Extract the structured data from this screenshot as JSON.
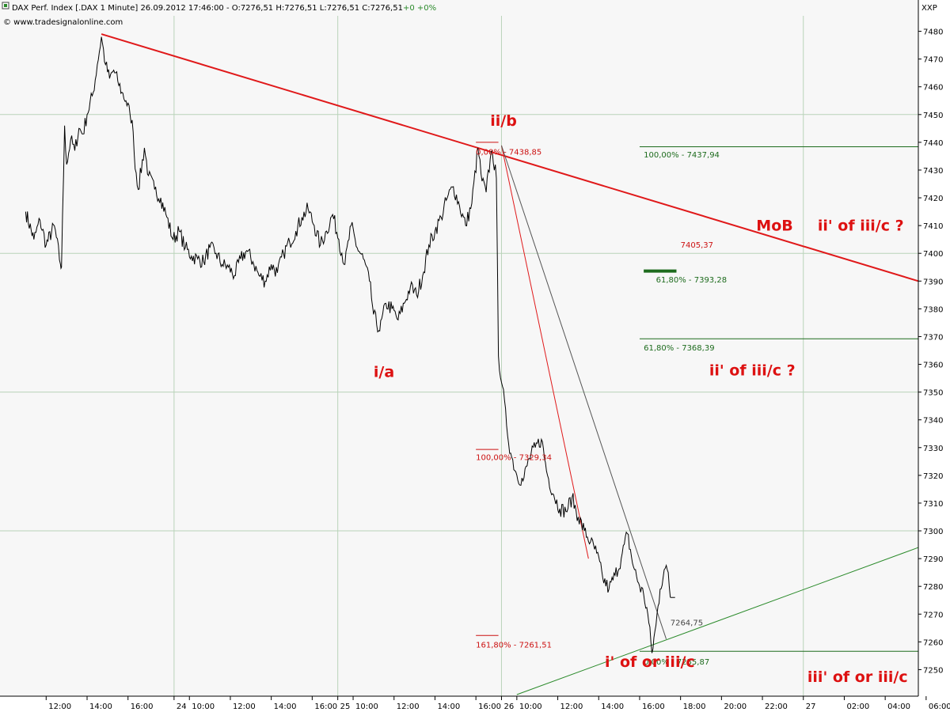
{
  "header": {
    "title": "DAX Perf. Index [.DAX  1 Minute] 26.09.2012 17:46:00 - O:7276,51 H:7276,51 L:7276,51 C:7276,51",
    "change": "+0 +0%",
    "source": "© www.tradesignalonline.com",
    "axis_corner_label": "XXP"
  },
  "colors": {
    "background": "#f7f7f7",
    "grid": "#b9d3b9",
    "price_line": "#000000",
    "trend_red": "#e0191a",
    "fib_red": "#cc1111",
    "fib_green": "#1d6b1d",
    "wave_label": "#dd1111"
  },
  "chart_data": {
    "type": "line",
    "title": "DAX Perf. Index [.DAX  1 Minute]",
    "ylim": [
      7241,
      7487
    ],
    "y_ticks": [
      7250,
      7260,
      7270,
      7280,
      7290,
      7300,
      7310,
      7320,
      7330,
      7340,
      7350,
      7360,
      7370,
      7380,
      7390,
      7400,
      7410,
      7420,
      7430,
      7440,
      7450,
      7460,
      7470,
      7480
    ],
    "y_tick_labels": [
      "7250",
      "7260",
      "7270",
      "7280",
      "7290",
      "7300",
      "7310",
      "7320",
      "7330",
      "7340",
      "7350",
      "7360",
      "7370",
      "7380",
      "7390",
      "7400",
      "7410",
      "7420",
      "7430",
      "7440",
      "7450",
      "7460",
      "7470",
      "7480"
    ],
    "x_ticks": [
      {
        "t": -2.0,
        "label": "12:00"
      },
      {
        "t": 0.0,
        "label": "14:00"
      },
      {
        "t": 2.0,
        "label": "16:00"
      },
      {
        "t": 4.25,
        "label": "24"
      },
      {
        "t": 5.0,
        "label": "10:00"
      },
      {
        "t": 7.0,
        "label": "12:00"
      },
      {
        "t": 9.0,
        "label": "14:00"
      },
      {
        "t": 11.0,
        "label": "16:00"
      },
      {
        "t": 12.25,
        "label": "25"
      },
      {
        "t": 13.0,
        "label": "10:00"
      },
      {
        "t": 15.0,
        "label": "12:00"
      },
      {
        "t": 17.0,
        "label": "14:00"
      },
      {
        "t": 19.0,
        "label": "16:00"
      },
      {
        "t": 20.25,
        "label": "26"
      },
      {
        "t": 21.0,
        "label": "10:00"
      },
      {
        "t": 23.0,
        "label": "12:00"
      },
      {
        "t": 25.0,
        "label": "14:00"
      },
      {
        "t": 27.0,
        "label": "16:00"
      },
      {
        "t": 29.0,
        "label": "18:00"
      },
      {
        "t": 31.0,
        "label": "20:00"
      },
      {
        "t": 33.0,
        "label": "22:00"
      },
      {
        "t": 35.0,
        "label": "27"
      },
      {
        "t": 37.0,
        "label": "02:00"
      },
      {
        "t": 39.0,
        "label": "04:00"
      },
      {
        "t": 41.0,
        "label": "06:00"
      }
    ],
    "x_grid": [
      4.25,
      12.25,
      20.25,
      35.0
    ],
    "y_grid": [
      7300,
      7350,
      7400,
      7450
    ],
    "series": [
      {
        "values": [
          [
            -3.0,
            7415
          ],
          [
            -2.6,
            7405
          ],
          [
            -2.3,
            7412
          ],
          [
            -2.0,
            7403
          ],
          [
            -1.6,
            7410
          ],
          [
            -1.3,
            7396
          ],
          [
            -1.25,
            7395
          ],
          [
            -1.1,
            7446
          ],
          [
            -1.0,
            7432
          ],
          [
            -0.8,
            7441
          ],
          [
            -0.6,
            7437
          ],
          [
            -0.4,
            7445
          ],
          [
            -0.2,
            7443
          ],
          [
            0.0,
            7450
          ],
          [
            0.3,
            7458
          ],
          [
            0.5,
            7468
          ],
          [
            0.7,
            7478
          ],
          [
            0.9,
            7468
          ],
          [
            1.1,
            7463
          ],
          [
            1.3,
            7466
          ],
          [
            1.5,
            7462
          ],
          [
            1.7,
            7458
          ],
          [
            1.9,
            7455
          ],
          [
            2.1,
            7450
          ],
          [
            2.2,
            7448
          ],
          [
            2.3,
            7436
          ],
          [
            2.5,
            7423
          ],
          [
            2.8,
            7438
          ],
          [
            3.0,
            7428
          ],
          [
            3.3,
            7423
          ],
          [
            3.6,
            7420
          ],
          [
            3.9,
            7413
          ],
          [
            4.2,
            7405
          ],
          [
            4.5,
            7408
          ],
          [
            4.8,
            7402
          ],
          [
            5.1,
            7399
          ],
          [
            5.4,
            7398
          ],
          [
            5.7,
            7397
          ],
          [
            6.0,
            7402
          ],
          [
            6.3,
            7400
          ],
          [
            6.6,
            7396
          ],
          [
            6.9,
            7395
          ],
          [
            7.2,
            7392
          ],
          [
            7.5,
            7398
          ],
          [
            7.8,
            7401
          ],
          [
            8.1,
            7397
          ],
          [
            8.4,
            7392
          ],
          [
            8.7,
            7390
          ],
          [
            9.0,
            7396
          ],
          [
            9.3,
            7393
          ],
          [
            9.6,
            7400
          ],
          [
            9.9,
            7404
          ],
          [
            10.2,
            7408
          ],
          [
            10.5,
            7413
          ],
          [
            10.8,
            7416
          ],
          [
            11.1,
            7410
          ],
          [
            11.4,
            7403
          ],
          [
            11.7,
            7408
          ],
          [
            12.0,
            7414
          ],
          [
            12.3,
            7405
          ],
          [
            12.6,
            7396
          ],
          [
            12.9,
            7410
          ],
          [
            13.2,
            7402
          ],
          [
            13.5,
            7398
          ],
          [
            13.8,
            7390
          ],
          [
            14.0,
            7378
          ],
          [
            14.3,
            7372
          ],
          [
            14.6,
            7382
          ],
          [
            14.9,
            7380
          ],
          [
            15.2,
            7376
          ],
          [
            15.5,
            7382
          ],
          [
            15.8,
            7388
          ],
          [
            16.1,
            7385
          ],
          [
            16.4,
            7392
          ],
          [
            16.7,
            7403
          ],
          [
            17.0,
            7408
          ],
          [
            17.3,
            7413
          ],
          [
            17.6,
            7420
          ],
          [
            17.9,
            7424
          ],
          [
            18.2,
            7417
          ],
          [
            18.5,
            7410
          ],
          [
            18.8,
            7418
          ],
          [
            19.1,
            7438
          ],
          [
            19.3,
            7426
          ],
          [
            19.5,
            7422
          ],
          [
            19.7,
            7434
          ],
          [
            19.8,
            7437
          ],
          [
            20.0,
            7427
          ],
          [
            20.1,
            7363
          ],
          [
            20.3,
            7352
          ],
          [
            20.5,
            7338
          ],
          [
            20.7,
            7328
          ],
          [
            21.0,
            7320
          ],
          [
            21.3,
            7318
          ],
          [
            21.6,
            7326
          ],
          [
            21.9,
            7330
          ],
          [
            22.2,
            7333
          ],
          [
            22.5,
            7320
          ],
          [
            22.8,
            7313
          ],
          [
            23.1,
            7308
          ],
          [
            23.4,
            7307
          ],
          [
            23.7,
            7312
          ],
          [
            24.0,
            7305
          ],
          [
            24.3,
            7300
          ],
          [
            24.6,
            7296
          ],
          [
            24.9,
            7292
          ],
          [
            25.2,
            7283
          ],
          [
            25.5,
            7279
          ],
          [
            25.8,
            7284
          ],
          [
            26.1,
            7290
          ],
          [
            26.4,
            7299
          ],
          [
            26.7,
            7287
          ],
          [
            27.0,
            7280
          ],
          [
            27.2,
            7277
          ],
          [
            27.4,
            7270
          ],
          [
            27.6,
            7256
          ],
          [
            27.8,
            7266
          ],
          [
            28.0,
            7279
          ],
          [
            28.2,
            7286
          ],
          [
            28.4,
            7285
          ],
          [
            28.5,
            7276
          ]
        ]
      }
    ],
    "trendlines": [
      {
        "from": [
          0.7,
          7479
        ],
        "to": [
          44.5,
          7390
        ],
        "color": "#e0191a"
      },
      {
        "from": [
          20.25,
          7438.85
        ],
        "to": [
          24.5,
          7290.0
        ],
        "color": "#e0191a"
      },
      {
        "from": [
          20.25,
          7438.85
        ],
        "to": [
          28.3,
          7261.0
        ],
        "color": "#555555"
      },
      {
        "from": [
          21.0,
          7241.0
        ],
        "to": [
          44.0,
          7294.0
        ],
        "color": "#2a8a2a"
      }
    ],
    "fib_levels": [
      {
        "t0": 19.0,
        "t1": 20.1,
        "y": 7440,
        "color": "red"
      },
      {
        "t0": 19.0,
        "t1": 20.1,
        "y": 7329.34,
        "color": "red"
      },
      {
        "t0": 19.0,
        "t1": 20.1,
        "y": 7262.3,
        "color": "red"
      },
      {
        "t0": 27.0,
        "t1": 44.6,
        "y": 7438.4,
        "color": "green"
      },
      {
        "t0": 27.0,
        "t1": 44.6,
        "y": 7369.2,
        "color": "green"
      },
      {
        "t0": 27.0,
        "t1": 44.6,
        "y": 7256.6,
        "color": "green"
      },
      {
        "t0": 27.2,
        "t1": 28.8,
        "y": 7393.6,
        "color": "green_thick"
      }
    ],
    "annotations": [
      {
        "text": "0,00% - 7438,85",
        "t": 19.0,
        "y": 7435.5,
        "style": "fib-red"
      },
      {
        "text": "100,00% - 7329,34",
        "t": 19.0,
        "y": 7325.5,
        "style": "fib-red"
      },
      {
        "text": "161,80% - 7261,51",
        "t": 19.0,
        "y": 7258.0,
        "style": "fib-red"
      },
      {
        "text": "100,00% - 7437,94",
        "t": 27.2,
        "y": 7434.5,
        "style": "fib-green"
      },
      {
        "text": "61,80% - 7393,28",
        "t": 27.8,
        "y": 7389.5,
        "style": "fib-green"
      },
      {
        "text": "61,80% - 7368,39",
        "t": 27.2,
        "y": 7365.0,
        "style": "fib-green"
      },
      {
        "text": "7405,37",
        "t": 29.0,
        "y": 7402.0,
        "style": "fib-red"
      },
      {
        "text": "7264,75",
        "t": 28.5,
        "y": 7266.0,
        "style": "val-gray"
      },
      {
        "text": "0,00% - 7255,87",
        "t": 27.2,
        "y": 7251.8,
        "style": "fib-green"
      },
      {
        "text": "ii/b",
        "t": 19.7,
        "y": 7446.0,
        "style": "wave-big"
      },
      {
        "text": "i/a",
        "t": 14.0,
        "y": 7355.5,
        "style": "wave-big"
      },
      {
        "text": "MoB",
        "t": 32.7,
        "y": 7408.2,
        "style": "wave-big"
      },
      {
        "text": "ii' of iii/c ?",
        "t": 35.7,
        "y": 7408.2,
        "style": "wave-big"
      },
      {
        "text": "ii' of iii/c ?",
        "t": 30.4,
        "y": 7356.0,
        "style": "wave-big"
      },
      {
        "text": "i' of or iii/c",
        "t": 25.3,
        "y": 7251.0,
        "style": "wave-big"
      },
      {
        "text": "iii' of or iii/c",
        "t": 35.2,
        "y": 7245.5,
        "style": "wave-big"
      }
    ]
  }
}
